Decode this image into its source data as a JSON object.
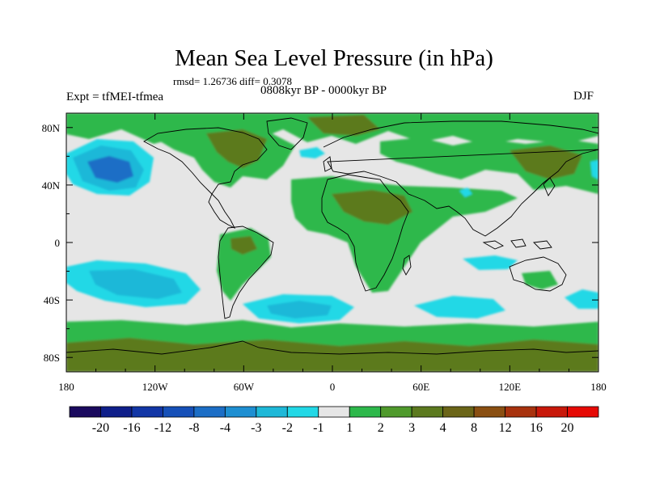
{
  "title": "Mean Sea Level Pressure (in hPa)",
  "stats": "rmsd= 1.26736 diff= 0.3078",
  "experiment": "Expt = tfMEI-tfmea",
  "period": "0808kyr BP - 0000kyr BP",
  "season": "DJF",
  "chart_data": {
    "type": "filled-contour-map",
    "title": "Mean Sea Level Pressure (in hPa)",
    "projection": "cylindrical-equidistant",
    "lon_range": [
      -180,
      180
    ],
    "lat_range": [
      -90,
      90
    ],
    "x_ticks": [
      {
        "value": -180,
        "label": "180"
      },
      {
        "value": -120,
        "label": "120W"
      },
      {
        "value": -60,
        "label": "60W"
      },
      {
        "value": 0,
        "label": "0"
      },
      {
        "value": 60,
        "label": "60E"
      },
      {
        "value": 120,
        "label": "120E"
      },
      {
        "value": 180,
        "label": "180"
      }
    ],
    "y_ticks": [
      {
        "value": 80,
        "label": "80N"
      },
      {
        "value": 40,
        "label": "40N"
      },
      {
        "value": 0,
        "label": "0"
      },
      {
        "value": -40,
        "label": "40S"
      },
      {
        "value": -80,
        "label": "80S"
      }
    ],
    "colorbar": {
      "labels": [
        "-20",
        "-16",
        "-12",
        "-8",
        "-4",
        "-3",
        "-2",
        "-1",
        "1",
        "2",
        "3",
        "4",
        "8",
        "12",
        "16",
        "20"
      ],
      "colors": [
        "#1a0a5e",
        "#0f1f8a",
        "#1236a6",
        "#1650b8",
        "#1c6ec6",
        "#1e8fd2",
        "#1eb8d8",
        "#22d8e6",
        "#e6e6e6",
        "#2db84b",
        "#4f9a2c",
        "#5c7a1f",
        "#6b6518",
        "#8a4f12",
        "#a8320e",
        "#c8180a",
        "#e60a05"
      ]
    },
    "anomaly_regions": [
      {
        "lon": -150,
        "lat": 46,
        "level": "-8 to -4",
        "color_index": 4
      },
      {
        "lon": -150,
        "lat": 46,
        "level": "-3 to -2",
        "color_index": 6
      },
      {
        "lon": -135,
        "lat": -28,
        "level": "-4 to -2",
        "color_index": 5
      },
      {
        "lon": -35,
        "lat": -45,
        "level": "-4 to -2",
        "color_index": 5
      },
      {
        "lon": 40,
        "lat": -48,
        "level": "-2 to -1",
        "color_index": 7
      },
      {
        "lon": 95,
        "lat": -17,
        "level": "-2 to -1",
        "color_index": 7
      },
      {
        "lon": -20,
        "lat": 60,
        "level": "-2 to -1",
        "color_index": 7
      },
      {
        "lon": 20,
        "lat": 12,
        "level": "2 to 4",
        "color_index": 10
      },
      {
        "lon": -100,
        "lat": 68,
        "level": "3 to 4",
        "color_index": 11
      },
      {
        "lon": 0,
        "lat": -75,
        "level": "3 to 4",
        "color_index": 11
      },
      {
        "lon": 0,
        "lat": -60,
        "level": "1 to 2",
        "color_index": 9
      }
    ]
  }
}
